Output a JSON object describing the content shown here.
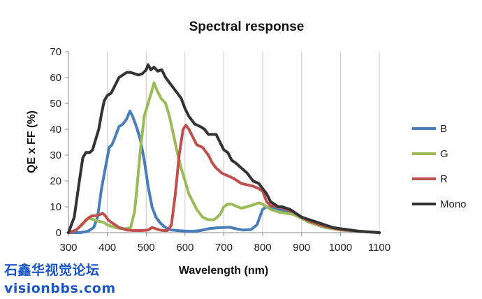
{
  "chart_data": {
    "type": "line",
    "title": "Spectral response",
    "xlabel": "Wavelength (nm)",
    "ylabel": "QE x FF (%)",
    "xlim": [
      300,
      1100
    ],
    "ylim": [
      0,
      70
    ],
    "xticks": [
      300,
      400,
      500,
      600,
      700,
      800,
      900,
      1000,
      1100
    ],
    "yticks": [
      0,
      10,
      20,
      30,
      40,
      50,
      60,
      70
    ],
    "grid": "vertical",
    "legend_position": "right",
    "series": [
      {
        "name": "B",
        "color": "#4a7ebb",
        "points": [
          [
            300,
            0
          ],
          [
            330,
            0
          ],
          [
            350,
            0.5
          ],
          [
            365,
            2
          ],
          [
            375,
            6
          ],
          [
            385,
            17
          ],
          [
            395,
            25
          ],
          [
            405,
            33
          ],
          [
            412,
            34
          ],
          [
            420,
            37
          ],
          [
            430,
            41
          ],
          [
            440,
            42
          ],
          [
            450,
            44
          ],
          [
            458,
            47
          ],
          [
            465,
            45
          ],
          [
            475,
            41
          ],
          [
            485,
            36
          ],
          [
            495,
            28
          ],
          [
            505,
            18
          ],
          [
            515,
            10
          ],
          [
            525,
            6
          ],
          [
            535,
            4
          ],
          [
            545,
            2.5
          ],
          [
            555,
            1.5
          ],
          [
            565,
            1
          ],
          [
            580,
            0.8
          ],
          [
            600,
            0.6
          ],
          [
            620,
            0.5
          ],
          [
            640,
            0.8
          ],
          [
            660,
            1.5
          ],
          [
            680,
            1.8
          ],
          [
            700,
            2
          ],
          [
            715,
            2.1
          ],
          [
            730,
            1.5
          ],
          [
            750,
            1
          ],
          [
            770,
            1.2
          ],
          [
            785,
            3
          ],
          [
            795,
            7
          ],
          [
            800,
            9
          ],
          [
            810,
            10
          ],
          [
            840,
            9
          ],
          [
            860,
            8
          ],
          [
            880,
            7
          ],
          [
            900,
            5.5
          ],
          [
            920,
            4
          ],
          [
            940,
            3
          ],
          [
            960,
            2
          ],
          [
            980,
            1.5
          ],
          [
            1000,
            1
          ],
          [
            1050,
            0.5
          ],
          [
            1100,
            0
          ]
        ]
      },
      {
        "name": "G",
        "color": "#9bbb59",
        "points": [
          [
            300,
            0
          ],
          [
            320,
            1
          ],
          [
            335,
            3
          ],
          [
            345,
            5
          ],
          [
            355,
            5.5
          ],
          [
            365,
            5
          ],
          [
            375,
            4.5
          ],
          [
            390,
            4
          ],
          [
            400,
            3
          ],
          [
            410,
            2.5
          ],
          [
            420,
            2
          ],
          [
            435,
            1.5
          ],
          [
            450,
            1.5
          ],
          [
            460,
            2
          ],
          [
            470,
            8
          ],
          [
            478,
            20
          ],
          [
            485,
            32
          ],
          [
            495,
            45
          ],
          [
            505,
            50
          ],
          [
            515,
            55
          ],
          [
            520,
            58
          ],
          [
            528,
            55
          ],
          [
            538,
            52
          ],
          [
            550,
            50
          ],
          [
            560,
            45
          ],
          [
            570,
            38
          ],
          [
            580,
            31
          ],
          [
            590,
            25
          ],
          [
            600,
            20
          ],
          [
            610,
            15
          ],
          [
            620,
            12
          ],
          [
            630,
            9
          ],
          [
            645,
            6
          ],
          [
            660,
            5
          ],
          [
            675,
            5
          ],
          [
            690,
            7
          ],
          [
            700,
            10
          ],
          [
            710,
            11
          ],
          [
            720,
            11
          ],
          [
            735,
            10
          ],
          [
            745,
            9.5
          ],
          [
            760,
            10
          ],
          [
            780,
            11
          ],
          [
            790,
            11.5
          ],
          [
            800,
            11
          ],
          [
            820,
            9
          ],
          [
            840,
            8
          ],
          [
            860,
            7.5
          ],
          [
            880,
            7
          ],
          [
            900,
            5.5
          ],
          [
            920,
            4
          ],
          [
            940,
            3
          ],
          [
            960,
            2
          ],
          [
            980,
            1.5
          ],
          [
            1000,
            1
          ],
          [
            1050,
            0.5
          ],
          [
            1100,
            0
          ]
        ]
      },
      {
        "name": "R",
        "color": "#c0504d",
        "points": [
          [
            300,
            0
          ],
          [
            320,
            1
          ],
          [
            340,
            4
          ],
          [
            350,
            5.5
          ],
          [
            360,
            6.5
          ],
          [
            370,
            6.5
          ],
          [
            380,
            7
          ],
          [
            388,
            7.5
          ],
          [
            395,
            6.5
          ],
          [
            402,
            5
          ],
          [
            410,
            4
          ],
          [
            420,
            3
          ],
          [
            430,
            2
          ],
          [
            440,
            1.5
          ],
          [
            450,
            1
          ],
          [
            470,
            0.8
          ],
          [
            490,
            0.8
          ],
          [
            505,
            1
          ],
          [
            515,
            2
          ],
          [
            525,
            1.5
          ],
          [
            535,
            1
          ],
          [
            545,
            0.8
          ],
          [
            555,
            0.8
          ],
          [
            565,
            3
          ],
          [
            575,
            15
          ],
          [
            585,
            30
          ],
          [
            595,
            40
          ],
          [
            602,
            41.5
          ],
          [
            610,
            40
          ],
          [
            620,
            37
          ],
          [
            630,
            34
          ],
          [
            645,
            33
          ],
          [
            660,
            30
          ],
          [
            670,
            27
          ],
          [
            680,
            25
          ],
          [
            695,
            23
          ],
          [
            710,
            22
          ],
          [
            725,
            21
          ],
          [
            745,
            19
          ],
          [
            760,
            18.5
          ],
          [
            775,
            18
          ],
          [
            790,
            17
          ],
          [
            800,
            16
          ],
          [
            810,
            12
          ],
          [
            820,
            10.5
          ],
          [
            840,
            10
          ],
          [
            860,
            9
          ],
          [
            880,
            8
          ],
          [
            900,
            6
          ],
          [
            920,
            4.5
          ],
          [
            940,
            3.5
          ],
          [
            960,
            2.5
          ],
          [
            980,
            1.8
          ],
          [
            1000,
            1.2
          ],
          [
            1050,
            0.5
          ],
          [
            1100,
            0
          ]
        ]
      },
      {
        "name": "Mono",
        "color": "#333333",
        "points": [
          [
            300,
            0
          ],
          [
            315,
            6
          ],
          [
            328,
            20
          ],
          [
            337,
            29
          ],
          [
            345,
            31
          ],
          [
            355,
            31
          ],
          [
            362,
            32
          ],
          [
            370,
            36
          ],
          [
            378,
            40
          ],
          [
            385,
            46
          ],
          [
            392,
            51
          ],
          [
            400,
            53
          ],
          [
            410,
            54
          ],
          [
            420,
            57
          ],
          [
            430,
            60
          ],
          [
            440,
            61
          ],
          [
            450,
            62
          ],
          [
            460,
            62
          ],
          [
            470,
            61.5
          ],
          [
            480,
            61
          ],
          [
            490,
            61.5
          ],
          [
            500,
            63
          ],
          [
            505,
            65
          ],
          [
            512,
            63
          ],
          [
            520,
            64
          ],
          [
            530,
            62.5
          ],
          [
            540,
            63
          ],
          [
            550,
            60
          ],
          [
            565,
            57
          ],
          [
            580,
            54
          ],
          [
            590,
            52
          ],
          [
            600,
            48
          ],
          [
            610,
            45
          ],
          [
            625,
            42
          ],
          [
            640,
            41
          ],
          [
            650,
            40
          ],
          [
            660,
            38
          ],
          [
            670,
            38
          ],
          [
            680,
            38
          ],
          [
            690,
            35
          ],
          [
            700,
            32
          ],
          [
            710,
            31
          ],
          [
            720,
            28
          ],
          [
            730,
            27
          ],
          [
            745,
            25
          ],
          [
            760,
            23
          ],
          [
            775,
            20
          ],
          [
            790,
            19
          ],
          [
            800,
            17
          ],
          [
            810,
            15
          ],
          [
            820,
            12
          ],
          [
            830,
            11
          ],
          [
            840,
            10
          ],
          [
            850,
            10
          ],
          [
            860,
            9.5
          ],
          [
            870,
            9
          ],
          [
            880,
            8
          ],
          [
            900,
            6
          ],
          [
            920,
            5
          ],
          [
            940,
            4
          ],
          [
            960,
            3
          ],
          [
            980,
            2
          ],
          [
            1000,
            1.5
          ],
          [
            1050,
            0.5
          ],
          [
            1100,
            0
          ]
        ]
      }
    ]
  },
  "watermark": {
    "line1": "石鑫华视觉论坛",
    "line2": "visionbbs.com"
  }
}
